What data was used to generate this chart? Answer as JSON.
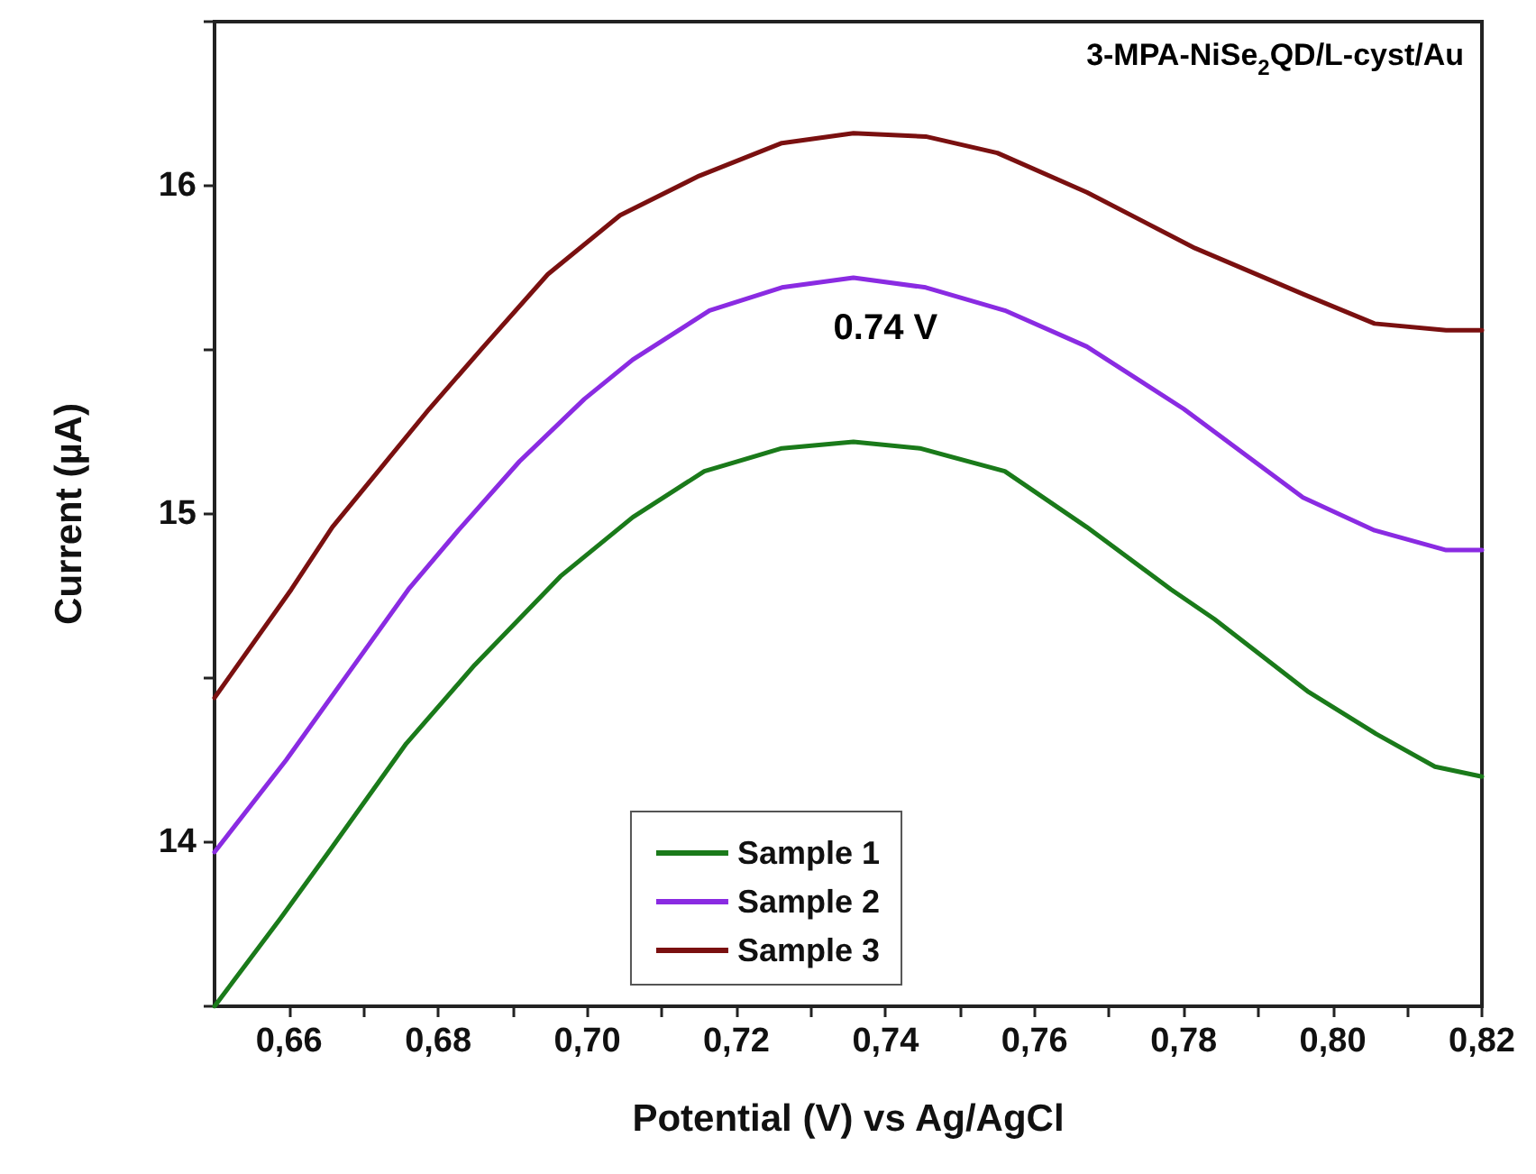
{
  "chart_data": {
    "type": "line",
    "xlabel": "Potential (V) vs Ag/AgCl",
    "ylabel": "Current (µA)",
    "annotations": [
      "3-MPA-NiSe$_{2}$QD/L-cyst/Au",
      {
        "text": "0.74 V",
        "x": 0.74,
        "y": 15.72
      }
    ],
    "xlim": [
      0.65,
      0.82
    ],
    "xticks": [
      {
        "value": 0.66,
        "label": "0,66"
      },
      {
        "value": 0.67,
        "label": null
      },
      {
        "value": 0.68,
        "label": "0,68"
      },
      {
        "value": 0.69,
        "label": null
      },
      {
        "value": 0.7,
        "label": "0,70"
      },
      {
        "value": 0.71,
        "label": null
      },
      {
        "value": 0.72,
        "label": "0,72"
      },
      {
        "value": 0.73,
        "label": null
      },
      {
        "value": 0.74,
        "label": "0,74"
      },
      {
        "value": 0.75,
        "label": null
      },
      {
        "value": 0.76,
        "label": "0,76"
      },
      {
        "value": 0.77,
        "label": null
      },
      {
        "value": 0.78,
        "label": "0,78"
      },
      {
        "value": 0.79,
        "label": null
      },
      {
        "value": 0.8,
        "label": "0,80"
      },
      {
        "value": 0.81,
        "label": null
      },
      {
        "value": 0.82,
        "label": "0,82"
      }
    ],
    "ylim": [
      13.5,
      16.5
    ],
    "yticks": [
      {
        "value": 13.5,
        "label": null
      },
      14,
      {
        "value": 14.5,
        "label": null
      },
      15,
      {
        "value": 15.5,
        "label": null
      },
      16,
      {
        "value": 16.5,
        "label": null
      }
    ],
    "grid": false,
    "legend": "bottom",
    "marker": "none",
    "line_style": "solid",
    "series": [
      {
        "name": "Sample 1",
        "color": "#1a7a1a",
        "x": [
          0.65,
          0.6586,
          0.6653,
          0.6757,
          0.6849,
          0.6964,
          0.7061,
          0.7157,
          0.7261,
          0.7357,
          0.7446,
          0.756,
          0.767,
          0.7783,
          0.7841,
          0.7966,
          0.8058,
          0.8137,
          0.82
        ],
        "values": [
          13.5,
          13.76,
          13.97,
          14.3,
          14.54,
          14.81,
          14.99,
          15.13,
          15.2,
          15.22,
          15.2,
          15.13,
          14.96,
          14.77,
          14.68,
          14.46,
          14.33,
          14.23,
          14.2
        ]
      },
      {
        "name": "Sample 2",
        "color": "#8a2be2",
        "x": [
          0.65,
          0.6596,
          0.6678,
          0.676,
          0.6827,
          0.6909,
          0.6996,
          0.7061,
          0.7164,
          0.7261,
          0.7357,
          0.7454,
          0.756,
          0.767,
          0.78,
          0.796,
          0.8056,
          0.8152,
          0.82
        ],
        "values": [
          13.97,
          14.25,
          14.51,
          14.77,
          14.95,
          15.16,
          15.35,
          15.47,
          15.62,
          15.69,
          15.72,
          15.69,
          15.62,
          15.51,
          15.32,
          15.05,
          14.95,
          14.89,
          14.89
        ]
      },
      {
        "name": "Sample 3",
        "color": "#7a1010",
        "x": [
          0.65,
          0.6603,
          0.6658,
          0.6723,
          0.6788,
          0.6861,
          0.6947,
          0.7044,
          0.715,
          0.7261,
          0.7357,
          0.7454,
          0.755,
          0.767,
          0.7815,
          0.796,
          0.8056,
          0.8152,
          0.82
        ],
        "values": [
          14.44,
          14.77,
          14.96,
          15.14,
          15.32,
          15.51,
          15.73,
          15.91,
          16.03,
          16.13,
          16.16,
          16.15,
          16.1,
          15.98,
          15.81,
          15.67,
          15.58,
          15.56,
          15.56
        ]
      }
    ]
  }
}
